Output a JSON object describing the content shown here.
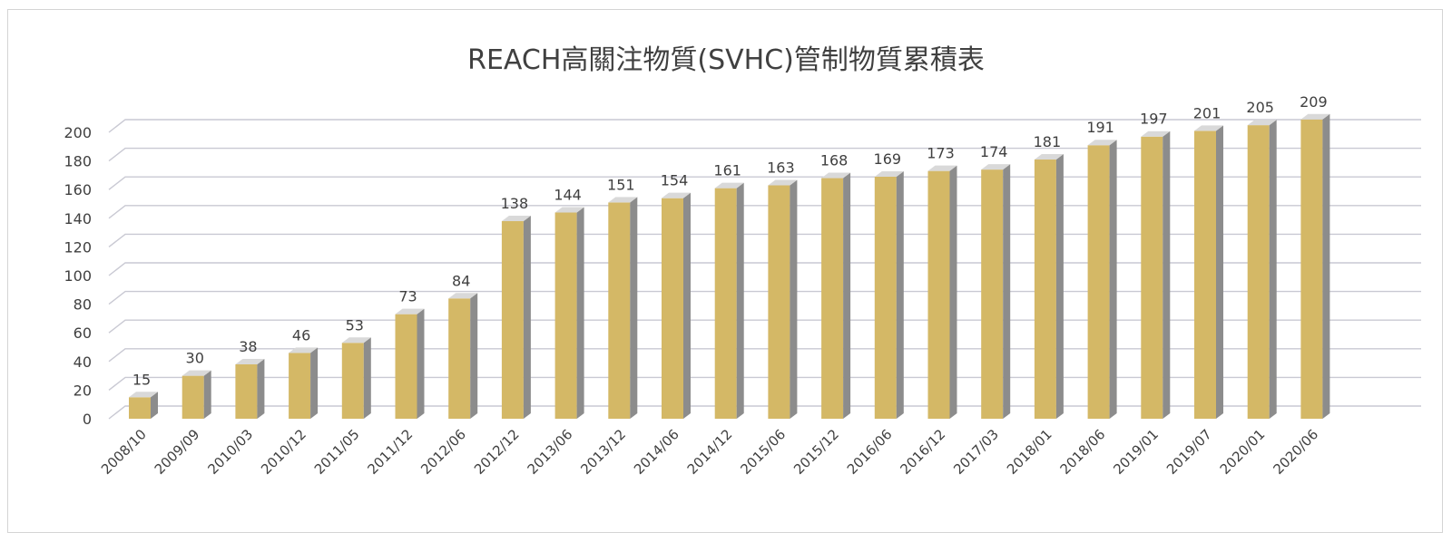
{
  "chart_data": {
    "type": "bar",
    "title": "REACH高關注物質(SVHC)管制物質累積表",
    "xlabel": "",
    "ylabel": "",
    "ylim": [
      0,
      200
    ],
    "yticks": [
      0,
      20,
      40,
      60,
      80,
      100,
      120,
      140,
      160,
      180,
      200
    ],
    "grid": true,
    "style": "3d-column",
    "colors": {
      "bar_front": "#D4B866",
      "bar_side": "#8C8C8C",
      "bar_top": "#D9D9D9",
      "gridline": "#C9C9D3",
      "text": "#404040"
    },
    "categories": [
      "2008/10",
      "2009/09",
      "2010/03",
      "2010/12",
      "2011/05",
      "2011/12",
      "2012/06",
      "2012/12",
      "2013/06",
      "2013/12",
      "2014/06",
      "2014/12",
      "2015/06",
      "2015/12",
      "2016/06",
      "2016/12",
      "2017/03",
      "2018/01",
      "2018/06",
      "2019/01",
      "2019/07",
      "2020/01",
      "2020/06"
    ],
    "values": [
      15,
      30,
      38,
      46,
      53,
      73,
      84,
      138,
      144,
      151,
      154,
      161,
      163,
      168,
      169,
      173,
      174,
      181,
      191,
      197,
      201,
      205,
      209
    ]
  }
}
